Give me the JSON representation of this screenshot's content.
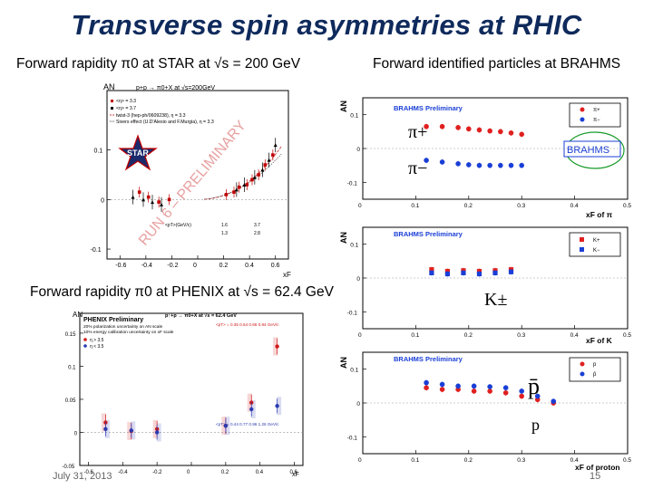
{
  "slide": {
    "title": "Transverse spin asymmetries at RHIC",
    "footer_date": "July 31, 2013",
    "page_number": "15"
  },
  "captions": {
    "star": "Forward rapidity π0 at STAR at √s = 200 GeV",
    "brahms": "Forward identified particles at BRAHMS",
    "phenix": "Forward rapidity π0 at PHENIX at √s = 62.4 GeV"
  },
  "star_plot": {
    "ylabel": "AN",
    "header": "p+p → π0+X at √s=200GeV",
    "legend": [
      "<η> = 3.3",
      "<η> = 3.7",
      "twist-3 (hep-ph/0609238), η = 3.3",
      "Sivers effect (U.D'Alesio and F.Murgia), η = 3.3"
    ],
    "watermark": "RUN 6 – PRELIMINARY",
    "logo_text": "STAR",
    "xlabel": "xF",
    "yticks": [
      "0.1",
      "0",
      "-0.1"
    ],
    "xticks": [
      "-0.6",
      "-0.4",
      "-0.2",
      "0",
      "0.2",
      "0.4",
      "0.6"
    ],
    "table_header": "<pT>(GeV/c)",
    "table_rows": [
      [
        "1.6",
        "3.7"
      ],
      [
        "1.3",
        "2.8"
      ]
    ],
    "colors": {
      "eta33": "#c00000",
      "eta37": "#000000",
      "twist3": "#d04040",
      "sivers": "#444444"
    }
  },
  "brahms_pi": {
    "ylabel": "AN",
    "title": "BRAHMS Preliminary",
    "xlabel": "xF of π",
    "legend": [
      "π+",
      "π−"
    ],
    "labels": [
      "π+",
      "π−"
    ],
    "logo_text": "BRAHMS",
    "yticks": [
      "0.1",
      "0",
      "-0.1"
    ],
    "xticks": [
      "0",
      "0.1",
      "0.2",
      "0.3",
      "0.4",
      "0.5"
    ],
    "colors": {
      "pos": "#e02020",
      "neg": "#1a3fd6"
    }
  },
  "brahms_k": {
    "ylabel": "AN",
    "title": "BRAHMS Preliminary",
    "xlabel": "xF of K",
    "legend": [
      "K+",
      "K−"
    ],
    "label": "K±",
    "yticks": [
      "0.1",
      "0",
      "-0.1"
    ],
    "xticks": [
      "0",
      "0.1",
      "0.2",
      "0.3",
      "0.4",
      "0.5"
    ]
  },
  "brahms_p": {
    "ylabel": "AN",
    "title": "BRAHMS Preliminary",
    "xlabel": "xF of proton",
    "legend": [
      "p",
      "p̄"
    ],
    "labels": [
      "p̄",
      "p"
    ],
    "yticks": [
      "0.1",
      "0",
      "-0.1"
    ],
    "xticks": [
      "0",
      "0.1",
      "0.2",
      "0.3",
      "0.4",
      "0.5"
    ]
  },
  "phenix_plot": {
    "ylabel": "AN",
    "title": "PHENIX Preliminary",
    "header": "p↑+p → π0+X at √s = 62.4 GeV",
    "notes": [
      "20% polarization uncertainty on AN scale",
      "10% energy calibration uncertainty on xF scale"
    ],
    "legend": [
      "η > 3.5",
      "η < 3.5"
    ],
    "pt_top": "<pT> = 0.35 0.54 0.66 0.84 GeV/c",
    "pt_bottom": "<pT> = 0.44 0.77 0.96 1.26 GeV/c",
    "xlabel": "xF",
    "yticks": [
      "0.15",
      "0.1",
      "0.05",
      "0",
      "-0.05"
    ],
    "xticks": [
      "-0.6",
      "-0.4",
      "-0.2",
      "0",
      "0.2",
      "0.4",
      "0.6"
    ],
    "colors": {
      "high": "#d01818",
      "low": "#2a3ab0"
    }
  },
  "chart_data": [
    {
      "type": "scatter",
      "title": "",
      "xlabel": "xF",
      "ylabel": "AN",
      "xlim": [
        -0.7,
        0.7
      ],
      "ylim": [
        -0.12,
        0.22
      ],
      "series": [
        {
          "name": "<η> = 3.3",
          "x": [
            -0.45,
            -0.38,
            -0.3,
            -0.22,
            0.22,
            0.28,
            0.32,
            0.38,
            0.42,
            0.47,
            0.52,
            0.58
          ],
          "y": [
            0.015,
            0.005,
            -0.005,
            0.0,
            0.01,
            0.015,
            0.025,
            0.03,
            0.04,
            0.05,
            0.07,
            0.09
          ]
        },
        {
          "name": "<η> = 3.7",
          "x": [
            -0.5,
            -0.42,
            -0.35,
            -0.28,
            0.3,
            0.36,
            0.44,
            0.5,
            0.55,
            0.6
          ],
          "y": [
            0.005,
            0.0,
            -0.005,
            -0.01,
            0.02,
            0.03,
            0.045,
            0.06,
            0.08,
            0.11
          ]
        }
      ]
    },
    {
      "type": "scatter",
      "title": "BRAHMS Preliminary",
      "xlabel": "xF of π",
      "ylabel": "AN",
      "xlim": [
        0,
        0.5
      ],
      "ylim": [
        -0.15,
        0.15
      ],
      "series": [
        {
          "name": "π+",
          "x": [
            0.12,
            0.15,
            0.18,
            0.2,
            0.22,
            0.24,
            0.26,
            0.28,
            0.3
          ],
          "y": [
            0.065,
            0.065,
            0.062,
            0.058,
            0.055,
            0.052,
            0.05,
            0.046,
            0.042
          ]
        },
        {
          "name": "π−",
          "x": [
            0.12,
            0.15,
            0.18,
            0.2,
            0.22,
            0.24,
            0.26,
            0.28,
            0.3
          ],
          "y": [
            -0.035,
            -0.04,
            -0.045,
            -0.048,
            -0.05,
            -0.05,
            -0.05,
            -0.05,
            -0.05
          ]
        }
      ]
    },
    {
      "type": "scatter",
      "title": "BRAHMS Preliminary",
      "xlabel": "xF of K",
      "ylabel": "AN",
      "xlim": [
        0,
        0.5
      ],
      "ylim": [
        -0.15,
        0.15
      ],
      "series": [
        {
          "name": "K+",
          "x": [
            0.13,
            0.16,
            0.19,
            0.22,
            0.25,
            0.28
          ],
          "y": [
            0.025,
            0.02,
            0.022,
            0.02,
            0.022,
            0.025
          ]
        },
        {
          "name": "K−",
          "x": [
            0.13,
            0.16,
            0.19,
            0.22,
            0.25,
            0.28
          ],
          "y": [
            0.015,
            0.012,
            0.015,
            0.012,
            0.015,
            0.018
          ]
        }
      ]
    },
    {
      "type": "scatter",
      "title": "BRAHMS Preliminary",
      "xlabel": "xF of proton",
      "ylabel": "AN",
      "xlim": [
        0,
        0.5
      ],
      "ylim": [
        -0.15,
        0.15
      ],
      "series": [
        {
          "name": "p",
          "x": [
            0.12,
            0.15,
            0.18,
            0.21,
            0.24,
            0.27,
            0.3,
            0.33,
            0.36
          ],
          "y": [
            0.045,
            0.04,
            0.04,
            0.035,
            0.035,
            0.03,
            0.02,
            0.01,
            0.0
          ]
        },
        {
          "name": "p̄",
          "x": [
            0.12,
            0.15,
            0.18,
            0.21,
            0.24,
            0.27,
            0.3,
            0.33,
            0.36
          ],
          "y": [
            0.06,
            0.055,
            0.05,
            0.05,
            0.048,
            0.045,
            0.035,
            0.02,
            0.005
          ]
        }
      ]
    },
    {
      "type": "scatter",
      "title": "PHENIX Preliminary",
      "xlabel": "xF",
      "ylabel": "AN",
      "xlim": [
        -0.65,
        0.65
      ],
      "ylim": [
        -0.05,
        0.18
      ],
      "series": [
        {
          "name": "η > 3.5",
          "x": [
            -0.5,
            -0.35,
            -0.2,
            0.2,
            0.35,
            0.5
          ],
          "y": [
            0.015,
            0.002,
            0.005,
            0.01,
            0.045,
            0.13
          ]
        },
        {
          "name": "η < 3.5",
          "x": [
            -0.5,
            -0.35,
            -0.2,
            0.2,
            0.35,
            0.5
          ],
          "y": [
            0.005,
            0.003,
            0.0,
            0.01,
            0.035,
            0.04
          ]
        }
      ]
    }
  ]
}
